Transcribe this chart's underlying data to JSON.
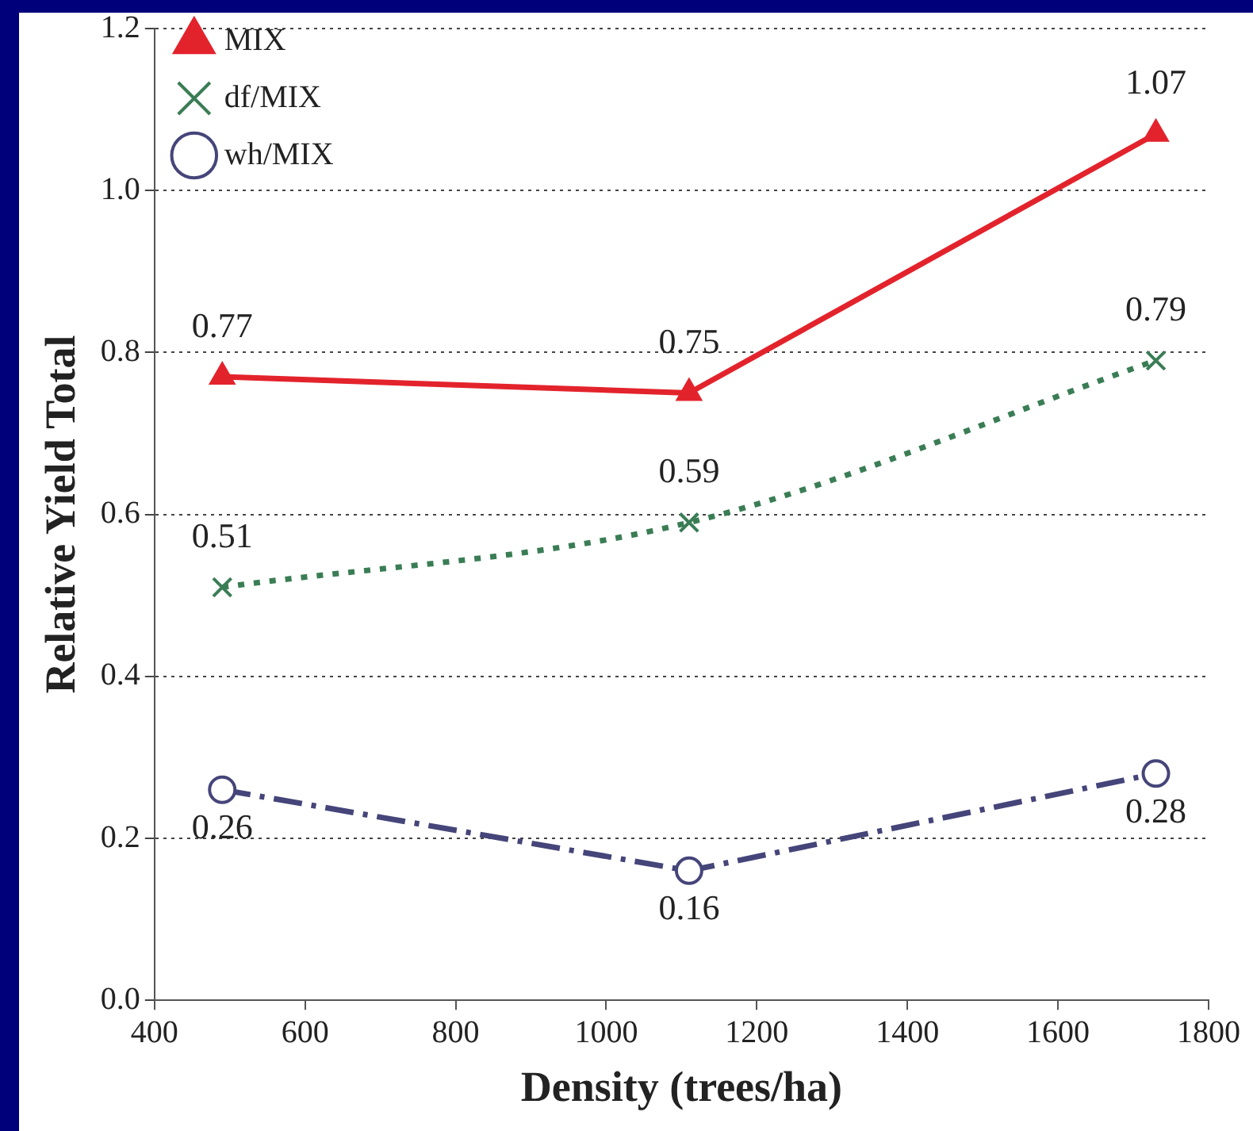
{
  "chart_data": {
    "type": "line",
    "xlabel": "Density (trees/ha)",
    "ylabel": "Relative Yield Total",
    "x": [
      490,
      1110,
      1730
    ],
    "series": [
      {
        "name": "MIX",
        "color": "#e3232c",
        "values": [
          0.77,
          0.75,
          1.07
        ],
        "marker": "triangle",
        "line_style": "solid"
      },
      {
        "name": "df/MIX",
        "color": "#3a7d55",
        "values": [
          0.51,
          0.59,
          0.79
        ],
        "marker": "cross",
        "line_style": "dotted"
      },
      {
        "name": "wh/MIX",
        "color": "#45457a",
        "values": [
          0.26,
          0.16,
          0.28
        ],
        "marker": "circle",
        "line_style": "dashed"
      }
    ],
    "xlim": [
      400,
      1800
    ],
    "xticks": [
      400,
      600,
      800,
      1000,
      1200,
      1400,
      1600,
      1800
    ],
    "ylim": [
      0,
      1.2
    ],
    "yticks": [
      {
        "value": 0,
        "label": "0.0"
      },
      0.2,
      0.4,
      0.6,
      0.8,
      {
        "value": 1,
        "label": "1.0"
      },
      {
        "value": 1.2,
        "label": "1.2"
      }
    ],
    "grid": "y",
    "legend": "top left",
    "data_labels": true
  }
}
